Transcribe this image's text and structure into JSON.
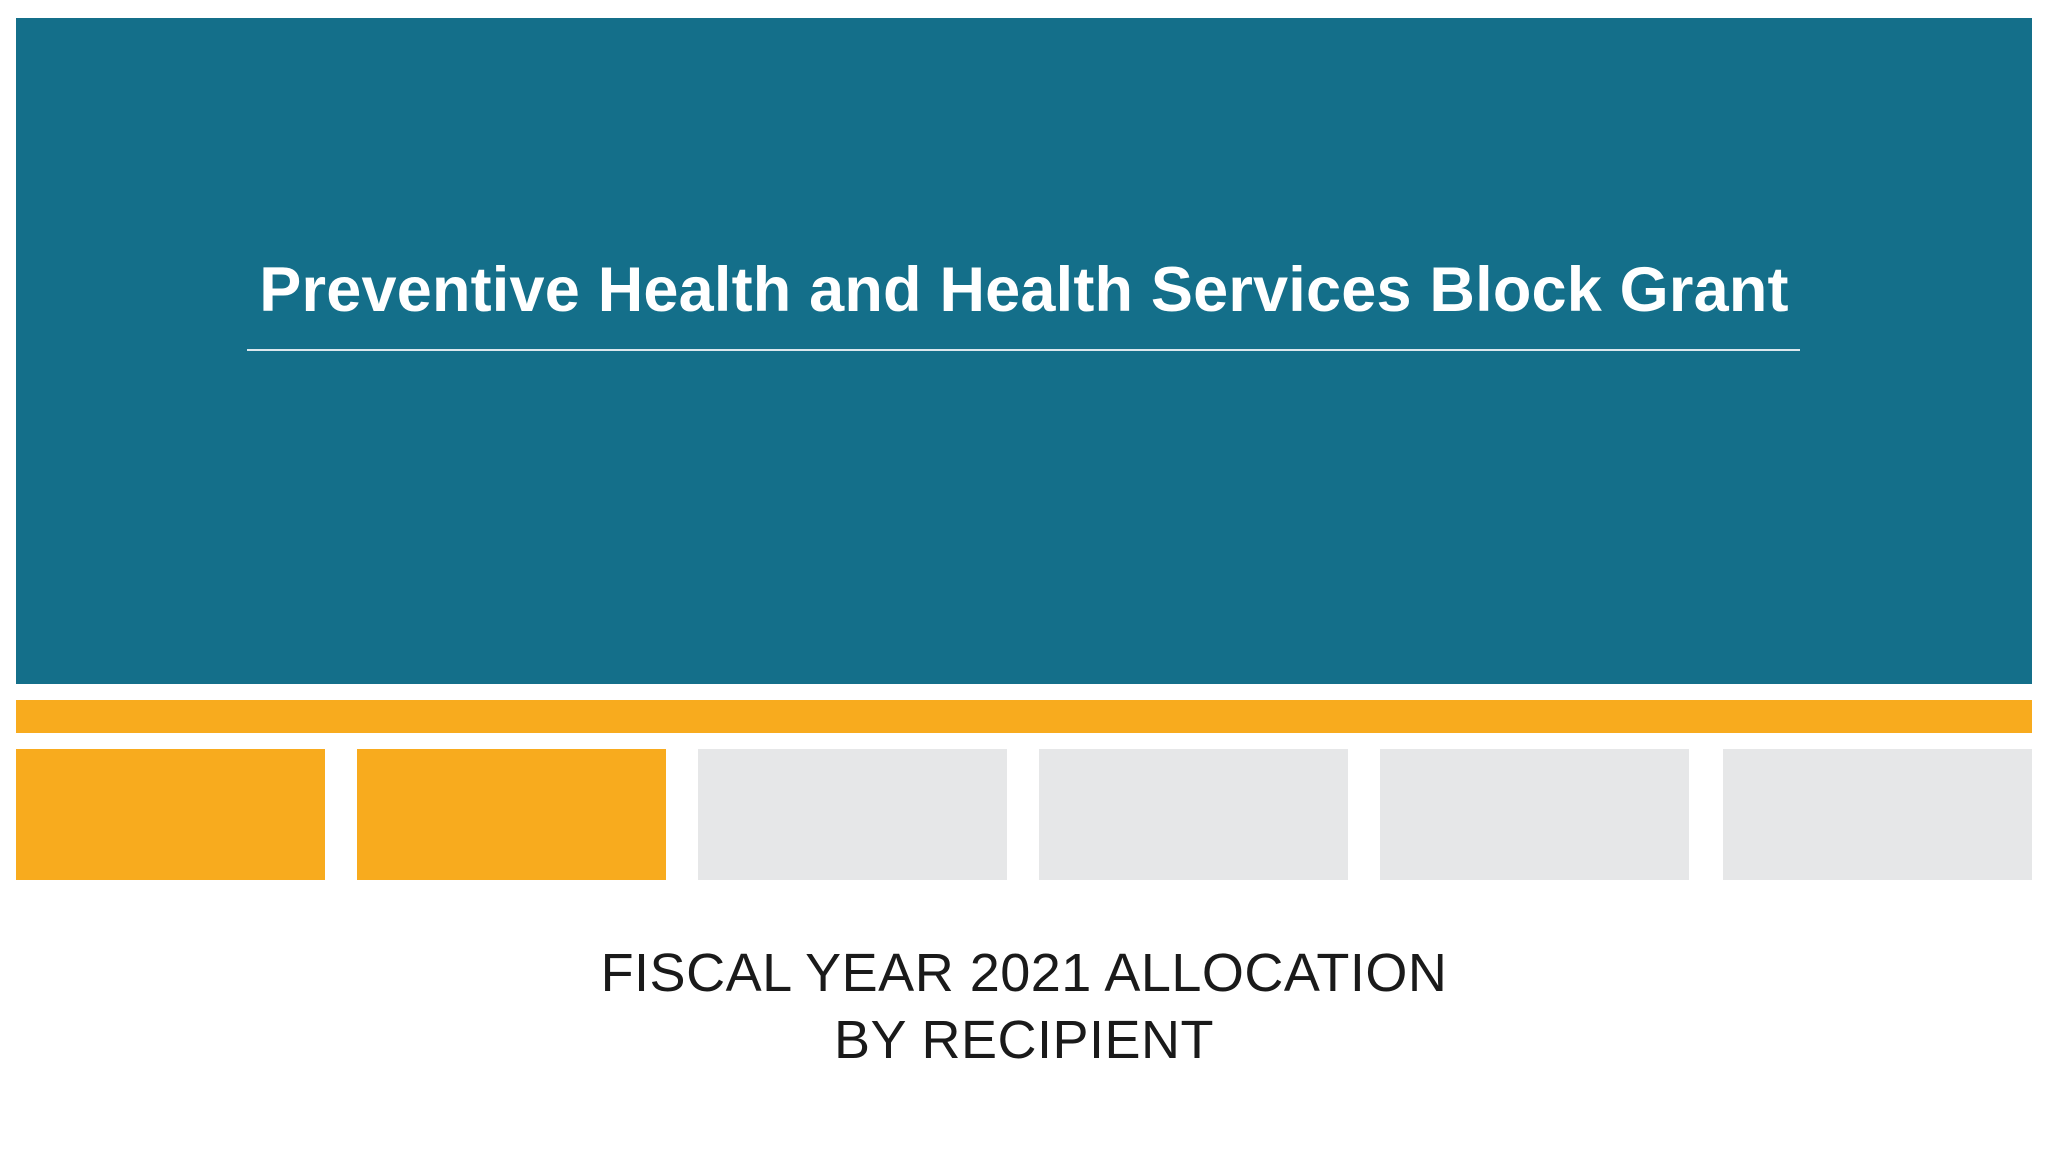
{
  "title": "Preventive Health and Health Services Block Grant",
  "subtitle": {
    "line1": "FISCAL YEAR 2021 ALLOCATION",
    "line2": "BY RECIPIENT"
  },
  "colors": {
    "hero_background": "#146f8a",
    "accent": "#f8ab1e",
    "inactive": "#e6e7e8",
    "title_text": "#ffffff",
    "subtitle_text": "#1a1a1a"
  },
  "progress_blocks": {
    "total": 6,
    "filled": 2
  }
}
